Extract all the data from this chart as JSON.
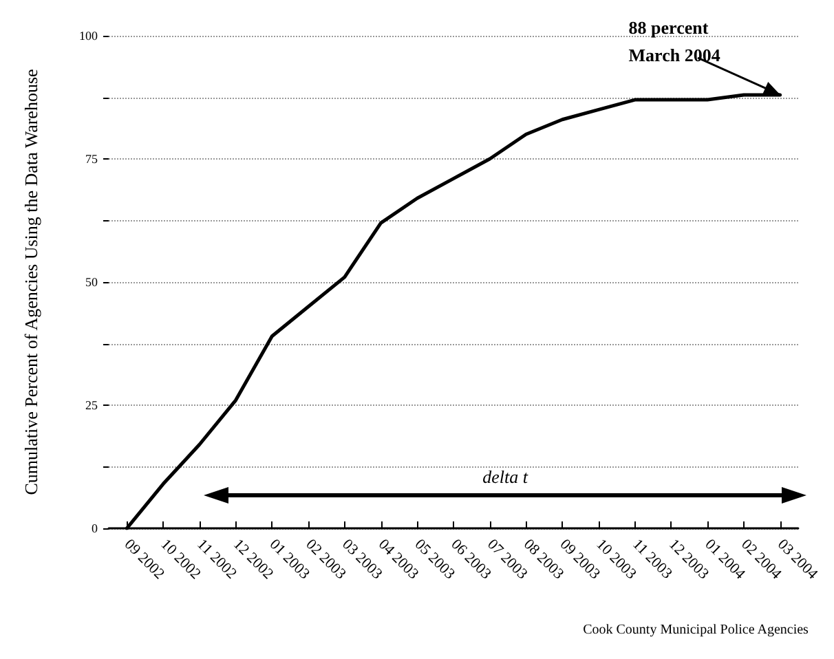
{
  "chart_data": {
    "type": "line",
    "ylabel": "Cumulative Percent of Agencies Using the Data Warehouse",
    "categories": [
      "09 2002",
      "10 2002",
      "11 2002",
      "12 2002",
      "01 2003",
      "02 2003",
      "03 2003",
      "04 2003",
      "05 2003",
      "06 2003",
      "07 2003",
      "08 2003",
      "09 2003",
      "10 2003",
      "11 2003",
      "12 2003",
      "01 2004",
      "02 2004",
      "03 2004"
    ],
    "series": [
      {
        "color": "#000000",
        "values": [
          0,
          9,
          17,
          26,
          39,
          45,
          51,
          62,
          67,
          71,
          75,
          80,
          83,
          85,
          87,
          87,
          87,
          88,
          88
        ]
      }
    ],
    "ylim": [
      0,
      100
    ],
    "yticks": [
      0,
      {
        "value": 12.5,
        "label": null
      },
      25,
      {
        "value": 37.5,
        "label": null
      },
      50,
      {
        "value": 62.5,
        "label": null
      },
      75,
      {
        "value": 87.5,
        "label": null
      },
      100
    ],
    "grid": "y",
    "marker": "none",
    "line_style": "solid",
    "annotations": [
      {
        "text": "88 percent\nMarch 2004",
        "x": "03 2004",
        "y": 88
      },
      "delta t",
      "Cook County Municipal Police Agencies"
    ]
  }
}
